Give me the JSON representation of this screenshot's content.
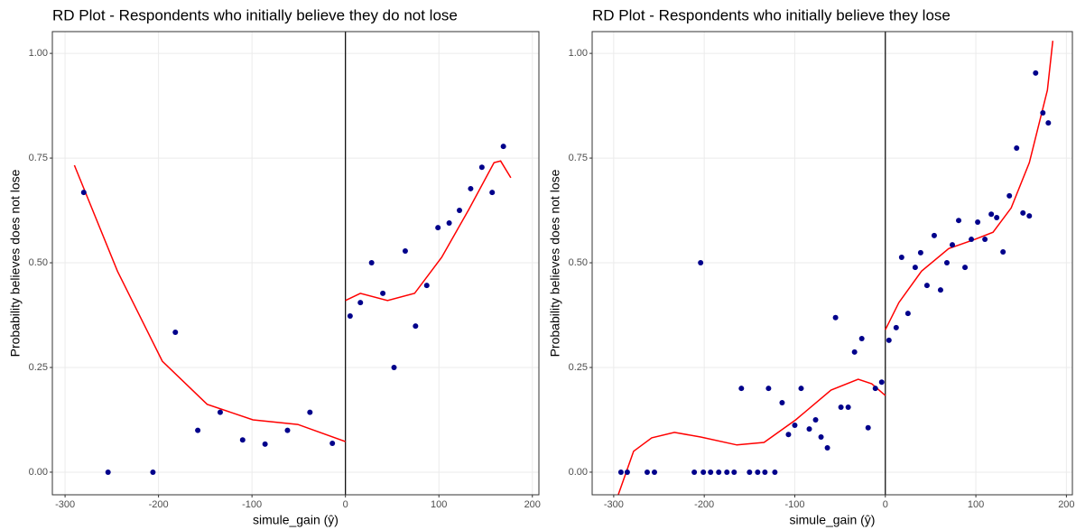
{
  "chart_data": [
    {
      "type": "scatter",
      "title": "RD Plot - Respondents who initially believe they do not lose",
      "x_label": "simule_gain (ŷ)",
      "y_label": "Probability believes does not lose",
      "xlim": [
        -313.6,
        207
      ],
      "ylim": [
        -0.054,
        1.052
      ],
      "xticks": [
        -300,
        -200,
        -100,
        0,
        100,
        200
      ],
      "yticks": [
        {
          "value": 0,
          "label": "0.00"
        },
        {
          "value": 0.25,
          "label": "0.25"
        },
        {
          "value": 0.5,
          "label": "0.50"
        },
        {
          "value": 0.75,
          "label": "0.75"
        },
        {
          "value": 1,
          "label": "1.00"
        }
      ],
      "grid": true,
      "cutoff": 0,
      "points": {
        "color": "#00008b",
        "x": [
          -280,
          -254,
          -206,
          -182,
          -158,
          -134,
          -110,
          -86,
          -62,
          -38,
          -14,
          5,
          16,
          28,
          40,
          52,
          64,
          75,
          87,
          99,
          111,
          122,
          134,
          146,
          157,
          169
        ],
        "values": [
          0.668,
          0,
          0,
          0.334,
          0.1,
          0.143,
          0.077,
          0.067,
          0.1,
          0.143,
          0.069,
          0.373,
          0.405,
          0.5,
          0.427,
          0.25,
          0.528,
          0.349,
          0.446,
          0.584,
          0.595,
          0.625,
          0.677,
          0.728,
          0.668,
          0.778
        ]
      },
      "fit": [
        {
          "color": "#ff0000",
          "x": [
            -290,
            -244,
            -196,
            -148,
            -99,
            -51,
            0
          ],
          "values": [
            0.733,
            0.48,
            0.265,
            0.162,
            0.125,
            0.114,
            0.073
          ]
        },
        {
          "color": "#ff0000",
          "x": [
            0,
            16,
            45,
            74,
            103,
            132,
            159,
            166,
            177
          ],
          "values": [
            0.41,
            0.427,
            0.41,
            0.427,
            0.513,
            0.627,
            0.739,
            0.743,
            0.703
          ]
        }
      ]
    },
    {
      "type": "scatter",
      "title": "RD Plot - Respondents who initially believe they lose",
      "x_label": "simule_gain (ŷ)",
      "y_label": "Probability believes does not lose",
      "xlim": [
        -323.8,
        206.6
      ],
      "ylim": [
        -0.054,
        1.052
      ],
      "xticks": [
        -300,
        -200,
        -100,
        0,
        100,
        200
      ],
      "yticks": [
        {
          "value": 0,
          "label": "0.00"
        },
        {
          "value": 0.25,
          "label": "0.25"
        },
        {
          "value": 0.5,
          "label": "0.50"
        },
        {
          "value": 0.75,
          "label": "0.75"
        },
        {
          "value": 1,
          "label": "1.00"
        }
      ],
      "grid": true,
      "cutoff": 0,
      "points": {
        "color": "#00008b",
        "x": [
          -292,
          -285,
          -263,
          -255,
          -211,
          -201,
          -193,
          -184,
          -175,
          -167,
          -150,
          -141,
          -133,
          -122,
          -204,
          -159,
          -129,
          -114,
          -107,
          -100,
          -93,
          -84,
          -77,
          -71,
          -64,
          -55,
          -49,
          -41,
          -34,
          -26,
          -19,
          -11,
          -4,
          4,
          12,
          18,
          25,
          33,
          39,
          46,
          54,
          61,
          68,
          74,
          81,
          88,
          95,
          102,
          110,
          117,
          123,
          130,
          137,
          145,
          152,
          159,
          166,
          174,
          180
        ],
        "values": [
          0,
          0,
          0,
          0,
          0,
          0,
          0,
          0,
          0,
          0,
          0,
          0,
          0,
          0,
          0.5,
          0.2,
          0.2,
          0.166,
          0.09,
          0.112,
          0.2,
          0.103,
          0.125,
          0.084,
          0.058,
          0.369,
          0.155,
          0.155,
          0.287,
          0.319,
          0.106,
          0.2,
          0.215,
          0.315,
          0.345,
          0.513,
          0.379,
          0.489,
          0.524,
          0.446,
          0.565,
          0.435,
          0.5,
          0.543,
          0.601,
          0.489,
          0.556,
          0.597,
          0.556,
          0.616,
          0.608,
          0.526,
          0.66,
          0.774,
          0.619,
          0.612,
          0.953,
          0.858,
          0.834
        ]
      },
      "fit": [
        {
          "color": "#ff0000",
          "x": [
            -295,
            -278,
            -258,
            -233,
            -204,
            -164,
            -134,
            -99,
            -60,
            -30,
            -15,
            0
          ],
          "values": [
            -0.054,
            0.05,
            0.082,
            0.095,
            0.084,
            0.065,
            0.071,
            0.125,
            0.196,
            0.222,
            0.211,
            0.183
          ]
        },
        {
          "color": "#ff0000",
          "x": [
            0,
            15,
            40,
            70,
            99,
            119,
            139,
            159,
            179,
            185
          ],
          "values": [
            0.34,
            0.405,
            0.48,
            0.534,
            0.556,
            0.573,
            0.631,
            0.739,
            0.912,
            1.03
          ]
        }
      ]
    }
  ]
}
